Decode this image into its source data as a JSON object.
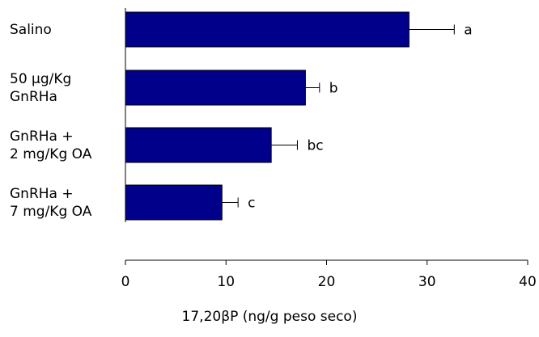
{
  "chart_data": {
    "type": "bar",
    "orientation": "horizontal",
    "categories": [
      [
        "Salino"
      ],
      [
        "50 µg/Kg",
        "GnRHa"
      ],
      [
        "GnRHa +",
        "2 mg/Kg OA"
      ],
      [
        "GnRHa +",
        "7 mg/Kg OA"
      ]
    ],
    "values": [
      28.2,
      17.9,
      14.5,
      9.6
    ],
    "errors": [
      4.5,
      1.4,
      2.6,
      1.6
    ],
    "annotations": [
      "a",
      "b",
      "bc",
      "c"
    ],
    "xlabel": "17,20βP (ng/g peso seco)",
    "xlim": [
      0,
      40
    ],
    "xticks": [
      0,
      10,
      20,
      30,
      40
    ],
    "bar_color": "#00008b",
    "grid": false
  }
}
